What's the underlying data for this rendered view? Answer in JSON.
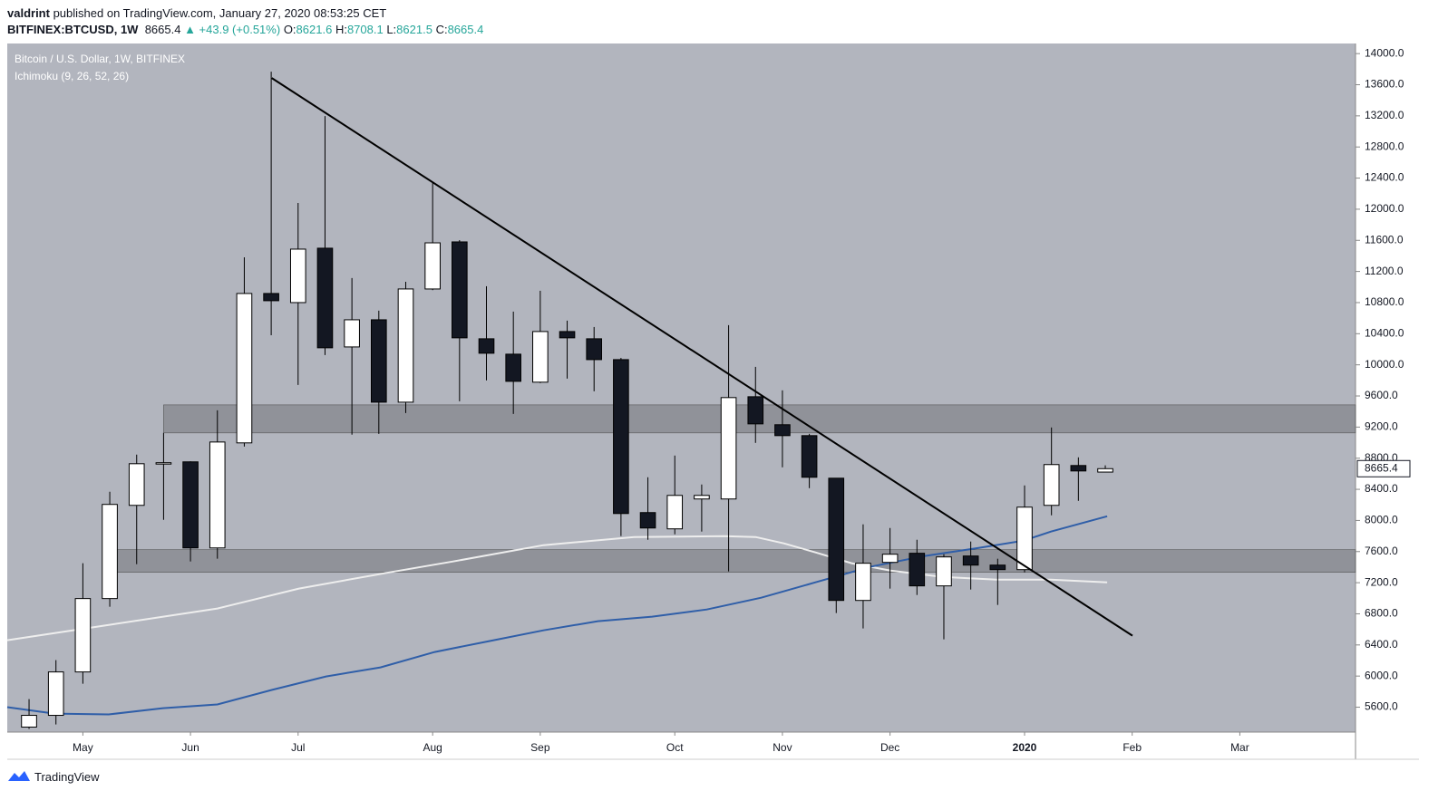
{
  "header": {
    "publisher": "valdrint",
    "published": " published on TradingView.com, January 27, 2020 08:53:25 CET",
    "symbol": "BITFINEX:BTCUSD, 1W",
    "change": "▲ +43.9 (+0.51%)",
    "ohlc_labels": [
      "O:",
      "H:",
      "L:",
      "C:"
    ]
  },
  "footer": {
    "brand": "TradingView"
  },
  "chart_data": {
    "type": "candlestick",
    "title": "Bitcoin / U.S. Dollar, 1W, BITFINEX",
    "subtitle": "Ichimoku (9, 26, 52, 26)",
    "categories": [
      null,
      null,
      null,
      null,
      null,
      null,
      null,
      null,
      null,
      null,
      null,
      null,
      null,
      null,
      null,
      null,
      null,
      null,
      null,
      null,
      null,
      null,
      null,
      null,
      null,
      null,
      null,
      null,
      null,
      null,
      null,
      null,
      null,
      null,
      null,
      null,
      null,
      null,
      null,
      null,
      null
    ],
    "open": [
      5344,
      5495,
      6053,
      6996,
      8194,
      8730,
      8753,
      7647,
      8997,
      10917,
      10800,
      11499,
      10230,
      10579,
      9520,
      10975,
      11580,
      10335,
      10137,
      9777,
      10428,
      10335,
      10067,
      8101,
      7892,
      8276,
      8276,
      9590,
      9230,
      9090,
      8543,
      6972,
      7461,
      7578,
      7159,
      7543,
      7426,
      7368,
      8194,
      8706,
      8621.6
    ],
    "high": [
      5704,
      6205,
      7450,
      8369,
      8846,
      9125,
      8760,
      9416,
      11382,
      13767,
      12080,
      13197,
      11115,
      10696,
      11068,
      12336,
      11603,
      11010,
      10684,
      10952,
      10568,
      10486,
      10090,
      8555,
      8834,
      8462,
      10510,
      9974,
      9672,
      9113,
      8543,
      7950,
      7903,
      7752,
      7566,
      7729,
      7508,
      8450,
      9195,
      8811,
      8708.1
    ],
    "low": [
      5320,
      5378,
      5902,
      6891,
      7438,
      8008,
      7473,
      7508,
      8950,
      10381,
      9741,
      10126,
      9102,
      9113,
      9381,
      10960,
      9532,
      9800,
      9369,
      9765,
      9823,
      9660,
      7799,
      7752,
      7822,
      7857,
      7345,
      8997,
      8683,
      8415,
      6810,
      6612,
      7124,
      7042,
      6472,
      7112,
      6914,
      7333,
      8066,
      8252,
      8621.5
    ],
    "close": [
      5495,
      6053,
      6996,
      8206,
      8729,
      8742,
      7647,
      9008,
      10917,
      10824,
      11487,
      10219,
      10579,
      9520,
      10975,
      11568,
      10347,
      10149,
      9788,
      10428,
      10347,
      10067,
      8089,
      7903,
      8322,
      8322,
      9579,
      9241,
      9090,
      8555,
      6972,
      7450,
      7566,
      7159,
      7531,
      7426,
      7368,
      8171,
      8718,
      8636,
      8665.4
    ],
    "up_color": "#ffffff",
    "down_color": "#131722",
    "wick_color": "#000000",
    "lines": [
      {
        "color": "#eeeeee",
        "x": [
          -0.81,
          2.96,
          7.0,
          10.03,
          13.4,
          15.76,
          19.12,
          22.49,
          25.86,
          27.0,
          28.05,
          29.23,
          30.57,
          32.02,
          33.94,
          35.96,
          37.98,
          40.07
        ],
        "values": [
          6461,
          6658,
          6868,
          7124,
          7333,
          7473,
          7682,
          7787,
          7798,
          7787,
          7706,
          7589,
          7450,
          7356,
          7275,
          7240,
          7240,
          7205
        ]
      },
      {
        "color": "#2f5ea8",
        "x": [
          -0.81,
          0.94,
          2.96,
          4.98,
          7.0,
          9.02,
          11.04,
          13.06,
          15.08,
          17.1,
          19.12,
          21.14,
          23.16,
          25.19,
          27.21,
          29.23,
          31.25,
          33.27,
          35.29,
          36.97,
          37.98,
          40.07
        ],
        "values": [
          5600,
          5518,
          5507,
          5588,
          5635,
          5821,
          5995,
          6112,
          6309,
          6449,
          6588,
          6705,
          6763,
          6856,
          7007,
          7205,
          7403,
          7543,
          7647,
          7740,
          7857,
          8054
        ]
      }
    ],
    "zones": [
      {
        "x0": 5.0,
        "top": 9485,
        "bottom": 9125
      },
      {
        "x0": 3.0,
        "top": 7624,
        "bottom": 7333
      }
    ],
    "trendline": {
      "x": [
        9.02,
        41.01
      ],
      "values": [
        13686,
        6519
      ]
    },
    "xlim": [
      -0.81,
      49.3
    ],
    "xticks": [
      {
        "value": 2,
        "label": "May"
      },
      {
        "value": 6,
        "label": "Jun"
      },
      {
        "value": 10,
        "label": "Jul"
      },
      {
        "value": 15,
        "label": "Aug"
      },
      {
        "value": 19,
        "label": "Sep"
      },
      {
        "value": 24,
        "label": "Oct"
      },
      {
        "value": 28,
        "label": "Nov"
      },
      {
        "value": 32,
        "label": "Dec"
      },
      {
        "value": 37,
        "label": "2020"
      },
      {
        "value": 41,
        "label": "Feb"
      },
      {
        "value": 45,
        "label": "Mar"
      }
    ],
    "ylim": [
      5280,
      14130
    ],
    "yticks": [
      {
        "value": 5600,
        "label": "5600.0"
      },
      {
        "value": 6000,
        "label": "6000.0"
      },
      {
        "value": 6400,
        "label": "6400.0"
      },
      {
        "value": 6800,
        "label": "6800.0"
      },
      {
        "value": 7200,
        "label": "7200.0"
      },
      {
        "value": 7600,
        "label": "7600.0"
      },
      {
        "value": 8000,
        "label": "8000.0"
      },
      {
        "value": 8400,
        "label": "8400.0"
      },
      {
        "value": 8800,
        "label": "8800.0"
      },
      {
        "value": 9200,
        "label": "9200.0"
      },
      {
        "value": 9600,
        "label": "9600.0"
      },
      {
        "value": 10000,
        "label": "10000.0"
      },
      {
        "value": 10400,
        "label": "10400.0"
      },
      {
        "value": 10800,
        "label": "10800.0"
      },
      {
        "value": 11200,
        "label": "11200.0"
      },
      {
        "value": 11600,
        "label": "11600.0"
      },
      {
        "value": 12000,
        "label": "12000.0"
      },
      {
        "value": 12400,
        "label": "12400.0"
      },
      {
        "value": 12800,
        "label": "12800.0"
      },
      {
        "value": 13200,
        "label": "13200.0"
      },
      {
        "value": 13600,
        "label": "13600.0"
      },
      {
        "value": 14000,
        "label": "14000.0"
      }
    ],
    "plot_background": "#b2b5be"
  }
}
